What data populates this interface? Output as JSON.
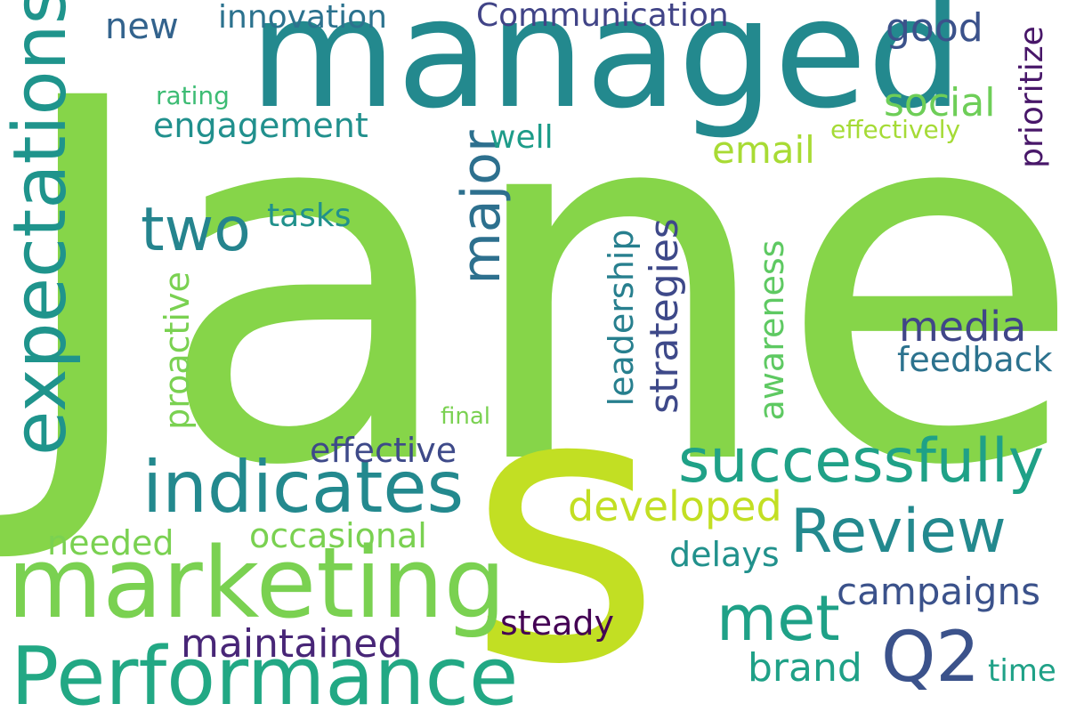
{
  "words": [
    {
      "text": "Jane",
      "color": "#86d549"
    },
    {
      "text": "s",
      "color": "#c2df23"
    },
    {
      "text": "managed",
      "color": "#23898e"
    },
    {
      "text": "marketing",
      "color": "#7ad151"
    },
    {
      "text": "Performance",
      "color": "#22a884"
    },
    {
      "text": "expectations",
      "color": "#1f948c"
    },
    {
      "text": "indicates",
      "color": "#23898e"
    },
    {
      "text": "successfully",
      "color": "#1fa187"
    },
    {
      "text": "Review",
      "color": "#23898e"
    },
    {
      "text": "two",
      "color": "#25848e"
    },
    {
      "text": "major",
      "color": "#2d708e"
    },
    {
      "text": "met",
      "color": "#1fa187"
    },
    {
      "text": "Q2",
      "color": "#3b528b"
    },
    {
      "text": "Communication",
      "color": "#414487"
    },
    {
      "text": "innovation",
      "color": "#2c728e"
    },
    {
      "text": "new",
      "color": "#33638d"
    },
    {
      "text": "good",
      "color": "#3b528b"
    },
    {
      "text": "prioritize",
      "color": "#481769"
    },
    {
      "text": "rating",
      "color": "#3dbc74"
    },
    {
      "text": "engagement",
      "color": "#21908d"
    },
    {
      "text": "social",
      "color": "#6ece58"
    },
    {
      "text": "well",
      "color": "#1e9c89"
    },
    {
      "text": "effectively",
      "color": "#a5db36"
    },
    {
      "text": "email",
      "color": "#a8db34"
    },
    {
      "text": "tasks",
      "color": "#21918c"
    },
    {
      "text": "leadership",
      "color": "#277f8e"
    },
    {
      "text": "strategies",
      "color": "#3e4989"
    },
    {
      "text": "awareness",
      "color": "#5ec962"
    },
    {
      "text": "proactive",
      "color": "#7ad151"
    },
    {
      "text": "media",
      "color": "#404688"
    },
    {
      "text": "feedback",
      "color": "#2c728e"
    },
    {
      "text": "final",
      "color": "#7ad151"
    },
    {
      "text": "effective",
      "color": "#3e4a89"
    },
    {
      "text": "developed",
      "color": "#c2df23"
    },
    {
      "text": "needed",
      "color": "#7ad151"
    },
    {
      "text": "occasional",
      "color": "#7ad151"
    },
    {
      "text": "delays",
      "color": "#21918c"
    },
    {
      "text": "campaigns",
      "color": "#3b528b"
    },
    {
      "text": "steady",
      "color": "#440154"
    },
    {
      "text": "maintained",
      "color": "#482677"
    },
    {
      "text": "brand",
      "color": "#1fa187"
    },
    {
      "text": "time",
      "color": "#1fa187"
    }
  ]
}
